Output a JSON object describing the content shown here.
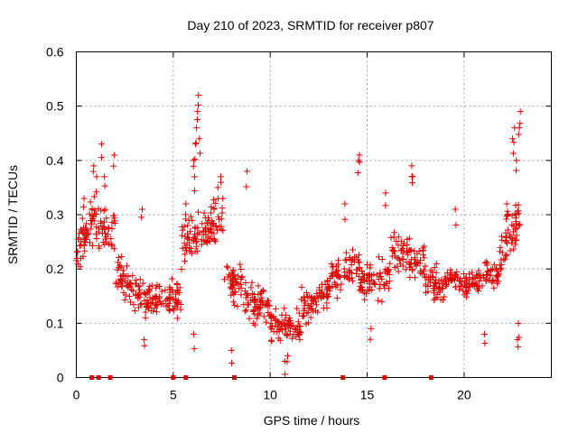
{
  "chart_data": {
    "type": "scatter",
    "title": "Day 210 of 2023, SRMTID for receiver p807",
    "xlabel": "GPS time / hours",
    "ylabel": "SRMTID / TECUs",
    "xlim": [
      0,
      24.5
    ],
    "ylim": [
      0,
      0.6
    ],
    "xticks": [
      0,
      5,
      10,
      15,
      20
    ],
    "xtick_labels": [
      "0",
      "5",
      "10",
      "15",
      "20"
    ],
    "yticks": [
      0,
      0.1,
      0.2,
      0.3,
      0.4,
      0.5,
      0.6
    ],
    "ytick_labels": [
      "0",
      "0.1",
      "0.2",
      "0.3",
      "0.4",
      "0.5",
      "0.6"
    ],
    "grid": true,
    "marker_color": "#e00000",
    "series": [
      {
        "name": "SRMTID",
        "marker": "plus",
        "segments": [
          {
            "x": [
              0.0,
              0.8
            ],
            "y": [
              0.23,
              0.29
            ],
            "spread": 0.06,
            "n": 45
          },
          {
            "x": [
              0.8,
              2.0
            ],
            "y": [
              0.29,
              0.26
            ],
            "spread": 0.07,
            "n": 55
          },
          {
            "x": [
              2.0,
              3.2
            ],
            "y": [
              0.2,
              0.15
            ],
            "spread": 0.05,
            "n": 55
          },
          {
            "x": [
              3.2,
              4.8
            ],
            "y": [
              0.15,
              0.14
            ],
            "spread": 0.05,
            "n": 70
          },
          {
            "x": [
              4.8,
              5.4
            ],
            "y": [
              0.16,
              0.13
            ],
            "spread": 0.05,
            "n": 30
          },
          {
            "x": [
              5.4,
              6.6
            ],
            "y": [
              0.25,
              0.26
            ],
            "spread": 0.07,
            "n": 55
          },
          {
            "x": [
              6.6,
              7.6
            ],
            "y": [
              0.27,
              0.29
            ],
            "spread": 0.06,
            "n": 50
          },
          {
            "x": [
              7.6,
              8.6
            ],
            "y": [
              0.18,
              0.17
            ],
            "spread": 0.06,
            "n": 45
          },
          {
            "x": [
              8.6,
              10.0
            ],
            "y": [
              0.14,
              0.12
            ],
            "spread": 0.05,
            "n": 65
          },
          {
            "x": [
              10.0,
              11.6
            ],
            "y": [
              0.1,
              0.09
            ],
            "spread": 0.04,
            "n": 75
          },
          {
            "x": [
              11.6,
              13.0
            ],
            "y": [
              0.12,
              0.16
            ],
            "spread": 0.05,
            "n": 65
          },
          {
            "x": [
              13.0,
              14.6
            ],
            "y": [
              0.18,
              0.21
            ],
            "spread": 0.05,
            "n": 70
          },
          {
            "x": [
              14.6,
              16.2
            ],
            "y": [
              0.17,
              0.19
            ],
            "spread": 0.05,
            "n": 70
          },
          {
            "x": [
              16.2,
              18.0
            ],
            "y": [
              0.24,
              0.21
            ],
            "spread": 0.05,
            "n": 80
          },
          {
            "x": [
              18.0,
              20.0
            ],
            "y": [
              0.17,
              0.18
            ],
            "spread": 0.04,
            "n": 85
          },
          {
            "x": [
              20.0,
              21.8
            ],
            "y": [
              0.17,
              0.19
            ],
            "spread": 0.04,
            "n": 80
          },
          {
            "x": [
              21.8,
              23.0
            ],
            "y": [
              0.24,
              0.3
            ],
            "spread": 0.07,
            "n": 55
          }
        ],
        "spikes": [
          {
            "x": 0.4,
            "y": 0.33
          },
          {
            "x": 0.9,
            "y": 0.39
          },
          {
            "x": 1.05,
            "y": 0.37
          },
          {
            "x": 1.3,
            "y": 0.43
          },
          {
            "x": 1.45,
            "y": 0.37
          },
          {
            "x": 1.95,
            "y": 0.41
          },
          {
            "x": 3.4,
            "y": 0.31
          },
          {
            "x": 5.65,
            "y": 0.32
          },
          {
            "x": 6.05,
            "y": 0.4
          },
          {
            "x": 6.15,
            "y": 0.43
          },
          {
            "x": 6.2,
            "y": 0.46
          },
          {
            "x": 6.25,
            "y": 0.49
          },
          {
            "x": 6.3,
            "y": 0.52
          },
          {
            "x": 6.35,
            "y": 0.44
          },
          {
            "x": 6.1,
            "y": 0.37
          },
          {
            "x": 7.3,
            "y": 0.35
          },
          {
            "x": 7.45,
            "y": 0.37
          },
          {
            "x": 8.8,
            "y": 0.38
          },
          {
            "x": 13.85,
            "y": 0.32
          },
          {
            "x": 14.55,
            "y": 0.4
          },
          {
            "x": 14.6,
            "y": 0.41
          },
          {
            "x": 15.95,
            "y": 0.34
          },
          {
            "x": 17.3,
            "y": 0.39
          },
          {
            "x": 17.35,
            "y": 0.37
          },
          {
            "x": 19.55,
            "y": 0.31
          },
          {
            "x": 22.5,
            "y": 0.44
          },
          {
            "x": 22.6,
            "y": 0.46
          },
          {
            "x": 22.85,
            "y": 0.46
          },
          {
            "x": 22.9,
            "y": 0.49
          },
          {
            "x": 22.7,
            "y": 0.4
          },
          {
            "x": 22.2,
            "y": 0.32
          },
          {
            "x": 22.8,
            "y": 0.1
          },
          {
            "x": 22.75,
            "y": 0.07
          },
          {
            "x": 6.05,
            "y": 0.08
          },
          {
            "x": 10.75,
            "y": 0.03
          },
          {
            "x": 10.9,
            "y": 0.04
          },
          {
            "x": 3.5,
            "y": 0.07
          },
          {
            "x": 8.0,
            "y": 0.05
          },
          {
            "x": 15.2,
            "y": 0.09
          },
          {
            "x": 21.05,
            "y": 0.08
          }
        ]
      },
      {
        "name": "zero markers",
        "marker": "square",
        "x": [
          0.8,
          1.15,
          1.75,
          5.0,
          5.65,
          8.15,
          13.75,
          15.9,
          18.3
        ]
      }
    ]
  }
}
